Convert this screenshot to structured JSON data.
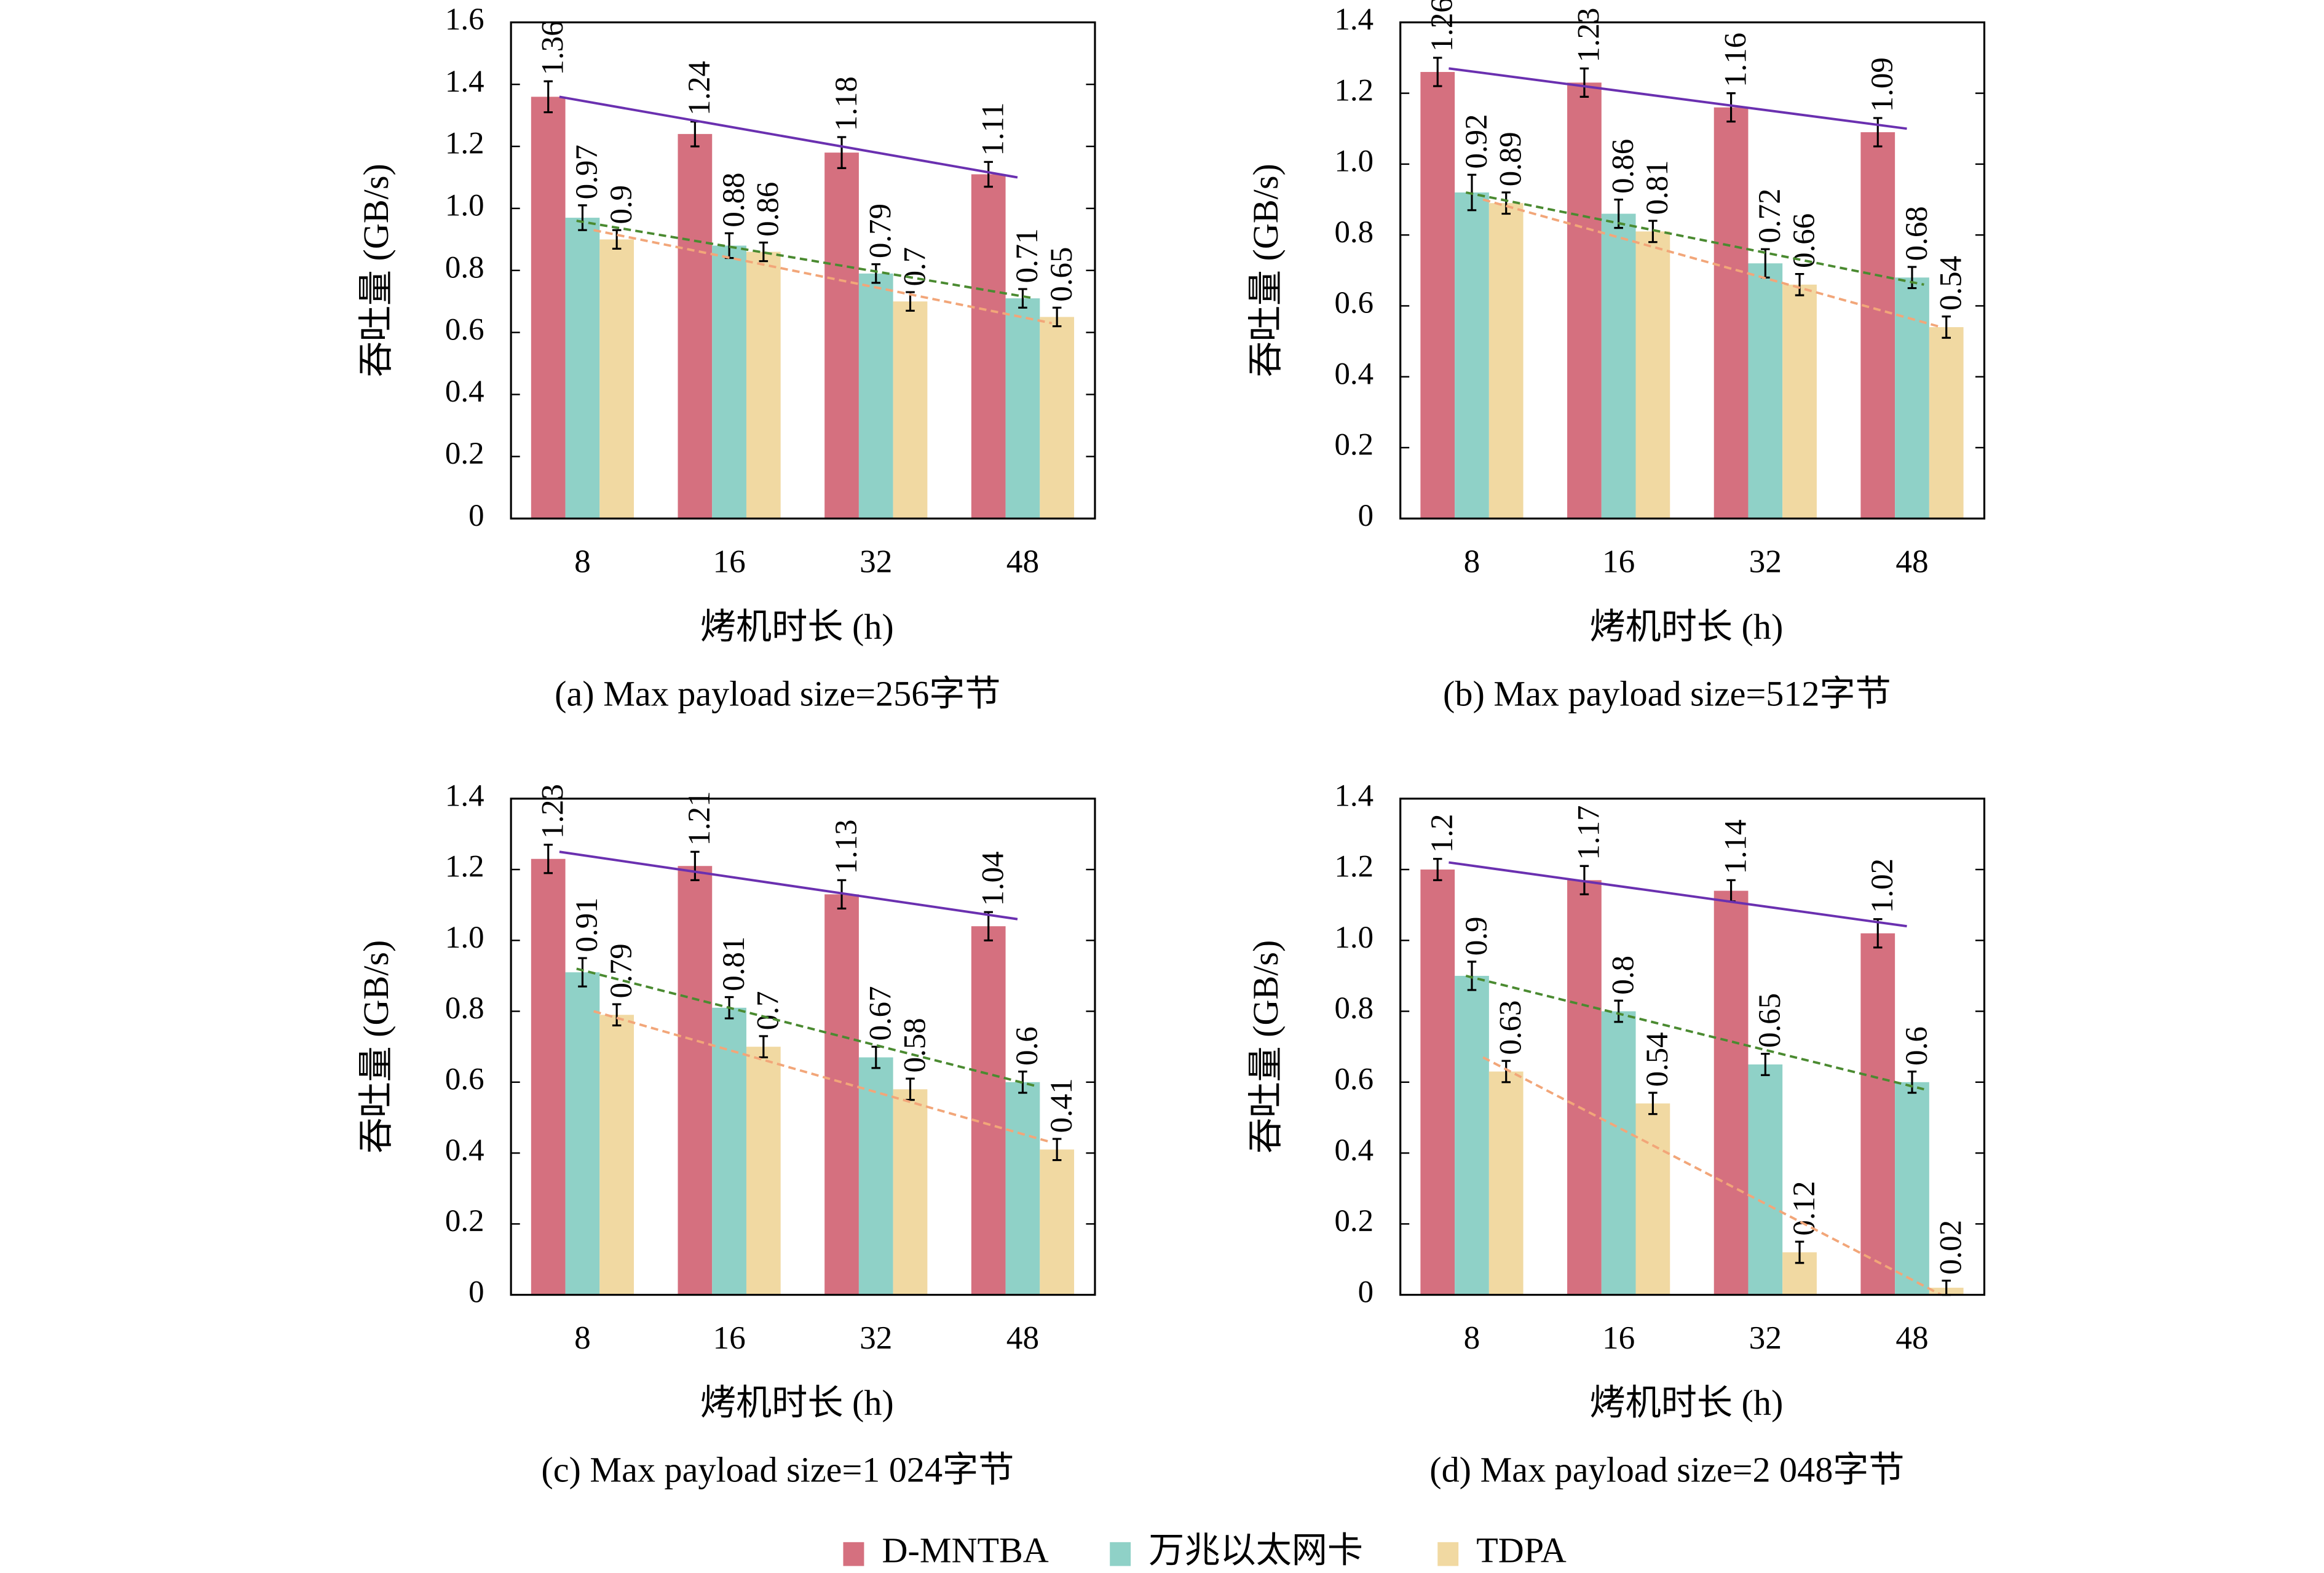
{
  "chart_data": [
    {
      "type": "bar",
      "title": "(a) Max payload size=256字节",
      "xlabel": "烤机时长 (h)",
      "ylabel": "吞吐量 (GB/s)",
      "categories": [
        "8",
        "16",
        "32",
        "48"
      ],
      "ylim": [
        0,
        1.6
      ],
      "yticks": [
        0,
        0.2,
        0.4,
        0.6,
        {
          "value": 0.8,
          "label": "0.8"
        },
        {
          "value": 1,
          "label": "1.0"
        },
        1.2,
        1.4,
        1.6
      ],
      "series": [
        {
          "name": "D-MNTBA",
          "color": "#d5707f",
          "values": [
            1.36,
            1.24,
            1.18,
            1.11
          ],
          "errors": [
            0.05,
            0.04,
            0.05,
            0.04
          ],
          "trend": [
            1.36,
            1.1
          ],
          "trend_color": "#6a30b0"
        },
        {
          "name": "万兆以太网卡",
          "color": "#8fd1c7",
          "values": [
            0.97,
            0.88,
            0.79,
            0.71
          ],
          "errors": [
            0.04,
            0.04,
            0.03,
            0.03
          ],
          "trend": [
            0.96,
            0.71
          ],
          "trend_color": "#4a8a30"
        },
        {
          "name": "TDPA",
          "color": "#f1d9a2",
          "values": [
            0.9,
            0.86,
            0.7,
            0.65
          ],
          "errors": [
            0.03,
            0.03,
            0.03,
            0.03
          ],
          "trend": [
            0.93,
            0.63
          ],
          "trend_color": "#f2a679"
        }
      ]
    },
    {
      "type": "bar",
      "title": "(b) Max payload size=512字节",
      "xlabel": "烤机时长 (h)",
      "ylabel": "吞吐量 (GB/s)",
      "categories": [
        "8",
        "16",
        "32",
        "48"
      ],
      "ylim": [
        0,
        1.4
      ],
      "yticks": [
        0,
        0.2,
        0.4,
        0.6,
        0.8,
        {
          "value": 1,
          "label": "1.0"
        },
        1.2,
        1.4
      ],
      "series": [
        {
          "color": "#d5707f",
          "values": [
            1.26,
            1.23,
            1.16,
            1.09
          ],
          "errors": [
            0.04,
            0.04,
            0.04,
            0.04
          ],
          "trend": [
            1.27,
            1.1
          ],
          "trend_color": "#6a30b0"
        },
        {
          "color": "#8fd1c7",
          "values": [
            0.92,
            0.86,
            0.72,
            0.68
          ],
          "errors": [
            0.05,
            0.04,
            0.04,
            0.03
          ],
          "trend": [
            0.92,
            0.66
          ],
          "trend_color": "#4a8a30"
        },
        {
          "color": "#f1d9a2",
          "values": [
            0.89,
            0.81,
            0.66,
            0.54
          ],
          "errors": [
            0.03,
            0.03,
            0.03,
            0.03
          ],
          "trend": [
            0.9,
            0.54
          ],
          "trend_color": "#f2a679"
        }
      ]
    },
    {
      "type": "bar",
      "title": "(c) Max payload size=1 024字节",
      "xlabel": "烤机时长 (h)",
      "ylabel": "吞吐量 (GB/s)",
      "categories": [
        "8",
        "16",
        "32",
        "48"
      ],
      "ylim": [
        0,
        1.4
      ],
      "yticks": [
        0,
        0.2,
        0.4,
        0.6,
        0.8,
        {
          "value": 1,
          "label": "1.0"
        },
        1.2,
        1.4
      ],
      "series": [
        {
          "color": "#d5707f",
          "values": [
            1.23,
            1.21,
            1.13,
            1.04
          ],
          "errors": [
            0.04,
            0.04,
            0.04,
            0.04
          ],
          "trend": [
            1.25,
            1.06
          ],
          "trend_color": "#6a30b0"
        },
        {
          "color": "#8fd1c7",
          "values": [
            0.91,
            0.81,
            0.67,
            0.6
          ],
          "errors": [
            0.04,
            0.03,
            0.03,
            0.03
          ],
          "trend": [
            0.92,
            0.59
          ],
          "trend_color": "#4a8a30"
        },
        {
          "color": "#f1d9a2",
          "values": [
            0.79,
            0.7,
            0.58,
            0.41
          ],
          "errors": [
            0.03,
            0.03,
            0.03,
            0.03
          ],
          "trend": [
            0.8,
            0.43
          ],
          "trend_color": "#f2a679"
        }
      ]
    },
    {
      "type": "bar",
      "title": "(d) Max payload size=2 048字节",
      "xlabel": "烤机时长 (h)",
      "ylabel": "吞吐量 (GB/s)",
      "categories": [
        "8",
        "16",
        "32",
        "48"
      ],
      "ylim": [
        0,
        1.4
      ],
      "yticks": [
        0,
        0.2,
        0.4,
        0.6,
        0.8,
        {
          "value": 1,
          "label": "1.0"
        },
        1.2,
        1.4
      ],
      "series": [
        {
          "color": "#d5707f",
          "values": [
            1.2,
            1.17,
            1.14,
            1.02
          ],
          "errors": [
            0.03,
            0.04,
            0.03,
            0.04
          ],
          "trend": [
            1.22,
            1.04
          ],
          "trend_color": "#6a30b0"
        },
        {
          "color": "#8fd1c7",
          "values": [
            0.9,
            0.8,
            0.65,
            0.6
          ],
          "errors": [
            0.04,
            0.03,
            0.03,
            0.03
          ],
          "trend": [
            0.9,
            0.58
          ],
          "trend_color": "#4a8a30"
        },
        {
          "color": "#f1d9a2",
          "values": [
            0.63,
            0.54,
            0.12,
            0.02
          ],
          "errors": [
            0.03,
            0.03,
            0.03,
            0.02
          ],
          "trend": [
            0.67,
            0
          ],
          "trend_color": "#f2a679"
        }
      ]
    }
  ]
}
